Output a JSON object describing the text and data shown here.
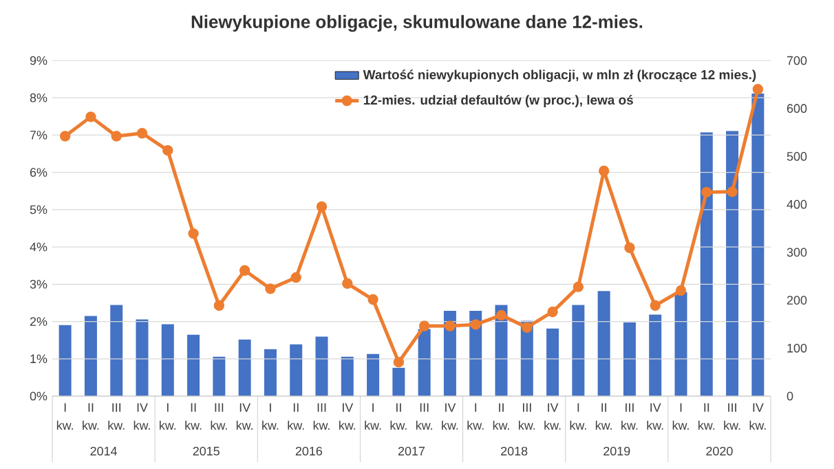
{
  "chart_data": {
    "type": "bar",
    "title": "Niewykupione obligacje, skumulowane dane 12-mies.",
    "categories": [
      "I kw.",
      "II kw.",
      "III kw.",
      "IV kw.",
      "I kw.",
      "II kw.",
      "III kw.",
      "IV kw.",
      "I kw.",
      "II kw.",
      "III kw.",
      "IV kw.",
      "I kw.",
      "II kw.",
      "III kw.",
      "IV kw.",
      "I kw.",
      "II kw.",
      "III kw.",
      "IV kw.",
      "I kw.",
      "II kw.",
      "III kw.",
      "IV kw.",
      "I kw.",
      "II kw.",
      "III kw.",
      "IV kw."
    ],
    "series": [
      {
        "name": "Wartość niewykupionych obligacji, w mln zł (kroczące 12 mies.)",
        "axis": "y2",
        "color": "#4472c4",
        "values": [
          148,
          167,
          190,
          160,
          150,
          128,
          82,
          118,
          98,
          108,
          124,
          82,
          88,
          59,
          140,
          178,
          178,
          190,
          157,
          141,
          190,
          219,
          154,
          170,
          217,
          550,
          553,
          631
        ]
      },
      {
        "name": "12-mies. udział defaultów (w proc.), lewa oś",
        "type": "line",
        "axis": "y",
        "color": "#ed7d31",
        "marker": "circle",
        "values": [
          6.97,
          7.49,
          6.97,
          7.05,
          6.59,
          4.36,
          2.43,
          3.37,
          2.88,
          3.18,
          5.08,
          3.02,
          2.59,
          0.91,
          1.88,
          1.88,
          1.92,
          2.17,
          1.84,
          2.26,
          2.93,
          6.04,
          3.98,
          2.43,
          2.83,
          5.47,
          5.48,
          8.23
        ]
      }
    ],
    "ylim": [
      0,
      9
    ],
    "yticks": [
      {
        "value": 0,
        "label": "0%"
      },
      {
        "value": 1,
        "label": "1%"
      },
      {
        "value": 2,
        "label": "2%"
      },
      {
        "value": 3,
        "label": "3%"
      },
      {
        "value": 4,
        "label": "4%"
      },
      {
        "value": 5,
        "label": "5%"
      },
      {
        "value": 6,
        "label": "6%"
      },
      {
        "value": 7,
        "label": "7%"
      },
      {
        "value": 8,
        "label": "8%"
      },
      {
        "value": 9,
        "label": "9%"
      }
    ],
    "y2lim": [
      0,
      700
    ],
    "y2ticks": [
      0,
      100,
      200,
      300,
      400,
      500,
      600,
      700
    ],
    "grid": "y",
    "legend": "top right",
    "annotations": [
      "2014",
      "2015",
      "2016",
      "2017",
      "2018",
      "2019",
      "2020"
    ]
  }
}
